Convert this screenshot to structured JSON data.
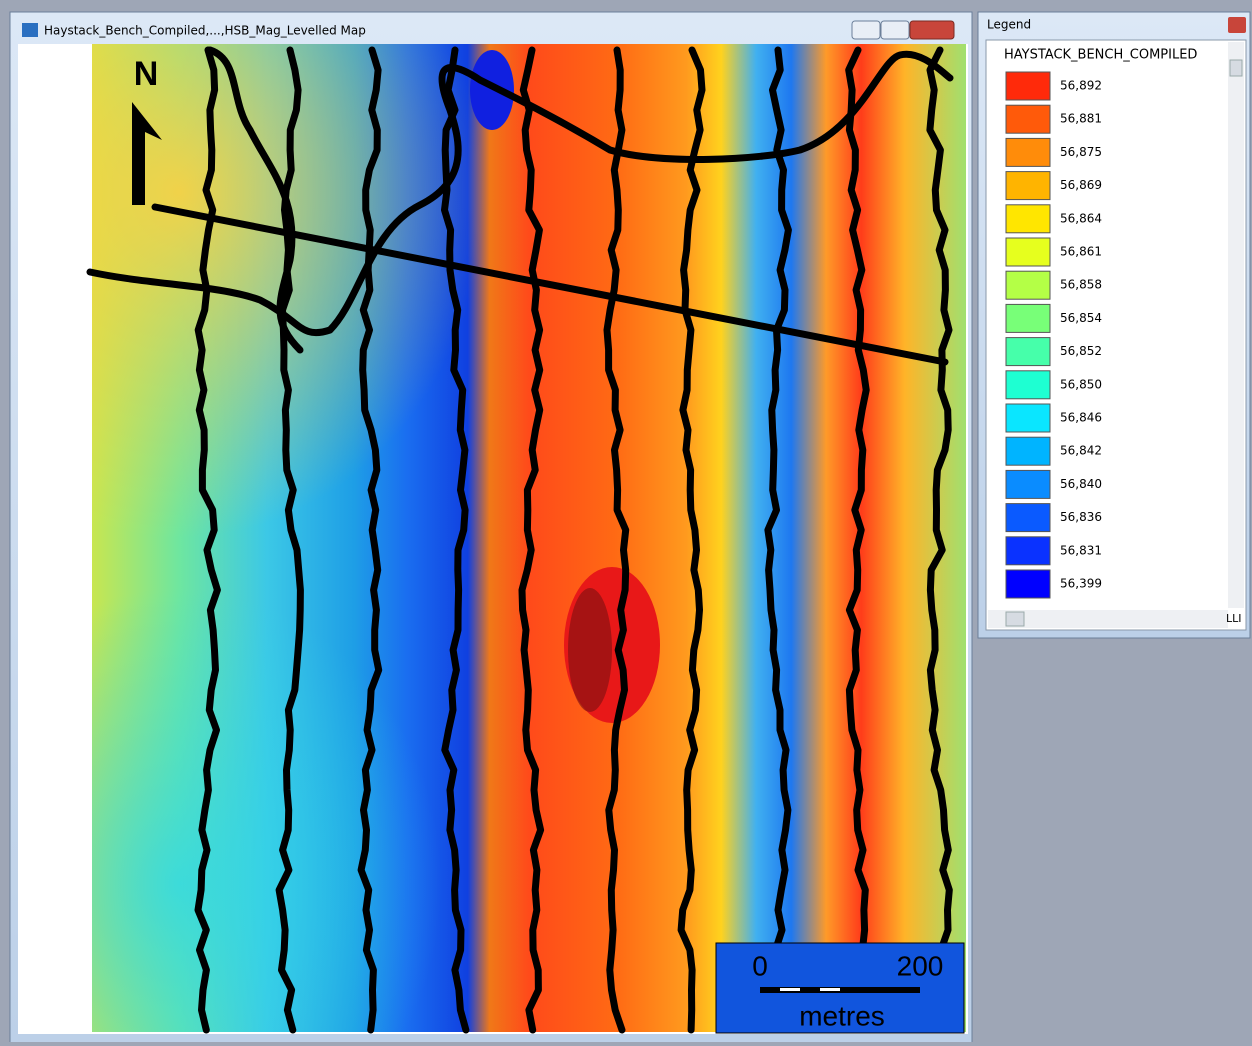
{
  "map_window": {
    "title": "Haystack_Bench_Compiled,...,HSB_Mag_Levelled Map",
    "north_label": "N",
    "scale_bar": {
      "start": "0",
      "end": "200",
      "unit": "metres"
    }
  },
  "legend_window": {
    "title": "Legend",
    "layer_name": "HAYSTACK_BENCH_COMPILED",
    "scroll_text": "LLI",
    "items": [
      {
        "label": "56,892",
        "color": "#ff2a0a"
      },
      {
        "label": "56,881",
        "color": "#ff5a0a"
      },
      {
        "label": "56,875",
        "color": "#ff8c0a"
      },
      {
        "label": "56,869",
        "color": "#ffb400"
      },
      {
        "label": "56,864",
        "color": "#ffe600"
      },
      {
        "label": "56,861",
        "color": "#e6ff1e"
      },
      {
        "label": "56,858",
        "color": "#b4ff46"
      },
      {
        "label": "56,854",
        "color": "#78ff78"
      },
      {
        "label": "56,852",
        "color": "#46ffaa"
      },
      {
        "label": "56,850",
        "color": "#1effd2"
      },
      {
        "label": "56,846",
        "color": "#0ae6ff"
      },
      {
        "label": "56,842",
        "color": "#00b4ff"
      },
      {
        "label": "56,840",
        "color": "#0a8cff"
      },
      {
        "label": "56,836",
        "color": "#0a5aff"
      },
      {
        "label": "56,831",
        "color": "#0a32ff"
      },
      {
        "label": "56,399",
        "color": "#0000ff"
      }
    ]
  }
}
